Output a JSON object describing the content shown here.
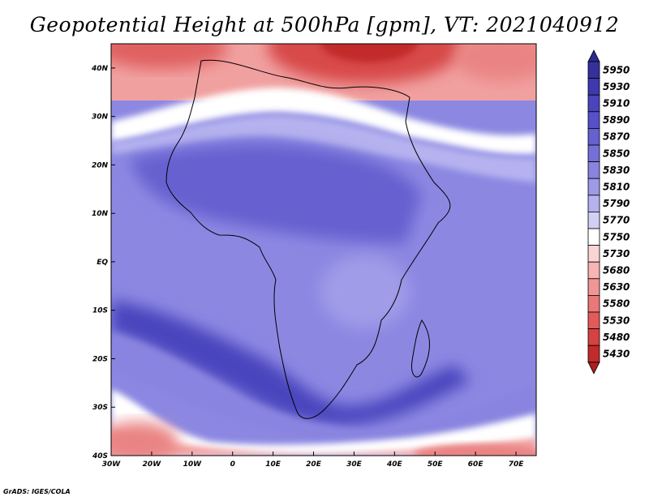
{
  "title": "Geopotential Height at 500hPa [gpm], VT: 2021040912",
  "footer": "GrADS: IGES/COLA",
  "map": {
    "lon_range": [
      -30,
      75
    ],
    "lat_range": [
      -40,
      45
    ],
    "lon_ticks": [
      {
        "value": -30,
        "label": "30W"
      },
      {
        "value": -20,
        "label": "20W"
      },
      {
        "value": -10,
        "label": "10W"
      },
      {
        "value": 0,
        "label": "0"
      },
      {
        "value": 10,
        "label": "10E"
      },
      {
        "value": 20,
        "label": "20E"
      },
      {
        "value": 30,
        "label": "30E"
      },
      {
        "value": 40,
        "label": "40E"
      },
      {
        "value": 50,
        "label": "50E"
      },
      {
        "value": 60,
        "label": "60E"
      },
      {
        "value": 70,
        "label": "70E"
      }
    ],
    "lat_ticks": [
      {
        "value": 40,
        "label": "40N"
      },
      {
        "value": 30,
        "label": "30N"
      },
      {
        "value": 20,
        "label": "20N"
      },
      {
        "value": 10,
        "label": "10N"
      },
      {
        "value": 0,
        "label": "EQ"
      },
      {
        "value": -10,
        "label": "10S"
      },
      {
        "value": -20,
        "label": "20S"
      },
      {
        "value": -30,
        "label": "30S"
      },
      {
        "value": -40,
        "label": "40S"
      }
    ]
  },
  "colorbar": {
    "levels": [
      {
        "label": "5950",
        "color": "#36309c"
      },
      {
        "label": "5930",
        "color": "#3e39ad"
      },
      {
        "label": "5910",
        "color": "#4a44bd"
      },
      {
        "label": "5890",
        "color": "#5750c8"
      },
      {
        "label": "5870",
        "color": "#6660d0"
      },
      {
        "label": "5850",
        "color": "#756fd8"
      },
      {
        "label": "5830",
        "color": "#8984e0"
      },
      {
        "label": "5810",
        "color": "#9e9ae8"
      },
      {
        "label": "5790",
        "color": "#b5b2ef"
      },
      {
        "label": "5770",
        "color": "#d2d0f6"
      },
      {
        "label": "5750",
        "color": "#ffffff"
      },
      {
        "label": "5730",
        "color": "#fbd4d4"
      },
      {
        "label": "5680",
        "color": "#f6b4b4"
      },
      {
        "label": "5630",
        "color": "#f19696"
      },
      {
        "label": "5580",
        "color": "#ea7878"
      },
      {
        "label": "5530",
        "color": "#e25a5a"
      },
      {
        "label": "5480",
        "color": "#d64141"
      },
      {
        "label": "5430",
        "color": "#c32a2a"
      }
    ],
    "top_cap_color": "#2c2a8e",
    "bottom_cap_color": "#b01d1d"
  }
}
